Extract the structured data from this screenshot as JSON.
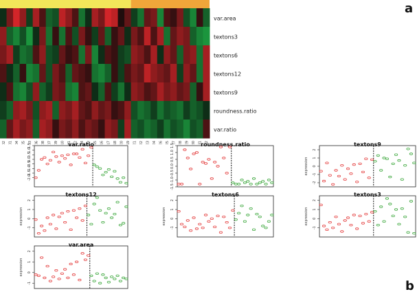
{
  "panel_letters": {
    "a": "a",
    "b": "b"
  },
  "chart_data": [
    {
      "type": "heatmap",
      "group_bar_colors": [
        "#f2e75a",
        "#f0a63a"
      ],
      "group_sizes": [
        20,
        12
      ],
      "rows": [
        "var.area",
        "textons3",
        "textons6",
        "textons12",
        "textons9",
        "roundness.ratio",
        "var.ratio"
      ],
      "columns": [
        "1002",
        "1001",
        "1004",
        "1005",
        "1003",
        "1006",
        "1008",
        "1007",
        "1009",
        "1010",
        "1011",
        "1012",
        "1014",
        "1013",
        "1015",
        "1016",
        "1017",
        "1018",
        "1020",
        "1019",
        "1021",
        "1022",
        "1023",
        "1024",
        "1026",
        "1025",
        "1027",
        "1028",
        "1029",
        "1030",
        "1031",
        "1032"
      ],
      "color_low": "#1fb84a",
      "color_mid": "#0a0a0a",
      "color_high": "#e8282c",
      "values": [
        [
          -0.2,
          0.5,
          0.9,
          0.6,
          -0.3,
          0.7,
          0.3,
          -0.5,
          -0.4,
          0.8,
          0.6,
          0.3,
          -0.6,
          -0.2,
          0.7,
          0.5,
          0.9,
          0.8,
          0.1,
          0.4,
          -0.3,
          -0.6,
          0.4,
          0.5,
          -0.7,
          0.3,
          0.2,
          0.5,
          -0.4,
          -0.7,
          0.2,
          -0.5
        ],
        [
          0.6,
          -0.5,
          -0.7,
          -0.4,
          -0.8,
          -0.2,
          0.5,
          -0.6,
          0.2,
          -0.6,
          0.3,
          -0.4,
          0.5,
          0.2,
          -0.3,
          0.4,
          -0.5,
          0.2,
          0.4,
          -0.2,
          0.5,
          0.3,
          0.8,
          0.3,
          0.7,
          -0.6,
          0.4,
          0.6,
          0.5,
          -0.5,
          -0.7,
          -0.8
        ],
        [
          0.5,
          0.7,
          -0.3,
          -0.6,
          -0.5,
          0.3,
          0.6,
          -0.4,
          -0.3,
          0.4,
          0.2,
          0.3,
          -0.6,
          0.5,
          -0.7,
          -0.2,
          0.3,
          0.2,
          -0.3,
          -0.4,
          0.6,
          0.5,
          0.3,
          0.7,
          -0.2,
          0.6,
          0.4,
          -0.5,
          0.5,
          0.6,
          -0.6,
          0.7
        ],
        [
          0.3,
          -0.2,
          -0.5,
          0.2,
          -0.7,
          -0.6,
          0.4,
          -0.4,
          0.5,
          0.3,
          -0.5,
          0.4,
          0.3,
          0.2,
          -0.6,
          -0.7,
          -0.5,
          0.2,
          -0.3,
          0.3,
          0.5,
          0.4,
          0.8,
          0.6,
          0.5,
          0.4,
          0.7,
          -0.3,
          0.6,
          0.4,
          -0.6,
          0.7
        ],
        [
          -0.2,
          0.3,
          -0.6,
          -0.7,
          -0.4,
          0.6,
          -0.5,
          -0.3,
          0.5,
          0.4,
          -0.6,
          -0.7,
          0.3,
          0.4,
          -0.2,
          -0.5,
          0.3,
          -0.3,
          -0.6,
          -0.2,
          0.6,
          0.5,
          0.3,
          0.4,
          0.7,
          0.5,
          0.6,
          0.4,
          0.5,
          -0.5,
          0.2,
          0.7
        ],
        [
          -0.3,
          -0.5,
          0.6,
          0.7,
          0.5,
          -0.4,
          0.6,
          0.7,
          -0.5,
          0.6,
          0.5,
          0.7,
          0.4,
          0.3,
          0.6,
          0.4,
          0.5,
          0.2,
          0.3,
          0.6,
          -0.4,
          -0.6,
          -0.5,
          -0.3,
          -0.6,
          -0.4,
          -0.5,
          -0.6,
          -0.3,
          -0.5,
          -0.4,
          -0.2
        ],
        [
          -0.5,
          0.4,
          0.7,
          0.5,
          0.6,
          -0.5,
          0.7,
          0.6,
          0.2,
          0.5,
          0.4,
          0.6,
          0.3,
          0.5,
          0.4,
          0.2,
          0.6,
          0.5,
          -0.3,
          0.7,
          -0.5,
          -0.4,
          -0.6,
          -0.5,
          -0.3,
          -0.6,
          -0.4,
          -0.5,
          -0.7,
          -0.4,
          -0.5,
          0.3
        ]
      ]
    },
    {
      "type": "scatter",
      "title": "var.ratio",
      "ylabel": "",
      "ylim": [
        -3.0,
        1.5
      ],
      "yticks": [
        "-2.0",
        "-1.5",
        "-1.0",
        "-0.5",
        "0.0",
        "0.5",
        "1.0",
        "1.5"
      ],
      "threshold_x": 20,
      "series": [
        {
          "color": "#e33b3b",
          "x": [
            1,
            2,
            3,
            4,
            5,
            6,
            7,
            8,
            9,
            10,
            11,
            12,
            13,
            14,
            15,
            16,
            17,
            18,
            19,
            20
          ],
          "y": [
            -2.0,
            -1.2,
            0.0,
            0.2,
            -0.5,
            -0.1,
            0.8,
            0.3,
            -0.3,
            0.4,
            0.1,
            0.5,
            -0.6,
            0.6,
            0.6,
            0.2,
            1.1,
            -0.4,
            0.4,
            1.3
          ]
        },
        {
          "color": "#3aa63a",
          "x": [
            21,
            22,
            23,
            24,
            25,
            26,
            27,
            28,
            29,
            30,
            31,
            32
          ],
          "y": [
            -0.6,
            -0.8,
            -1.0,
            -1.7,
            -1.4,
            -1.1,
            -1.9,
            -1.3,
            -2.1,
            -2.5,
            -2.0,
            -2.6
          ]
        }
      ]
    },
    {
      "type": "scatter",
      "title": "roundness.ratio",
      "ylabel": "",
      "ylim": [
        -1.5,
        1.5
      ],
      "yticks": [
        "-1.5",
        "-1.0",
        "-0.5",
        "0.0",
        "0.5",
        "1.0",
        "1.5"
      ],
      "threshold_x": 18,
      "series": [
        {
          "color": "#e33b3b",
          "x": [
            1,
            2,
            3,
            4,
            5,
            6,
            7,
            8,
            9,
            10,
            11,
            12,
            13,
            14,
            15,
            16,
            17,
            18
          ],
          "y": [
            -1.3,
            -1.3,
            1.2,
            0.6,
            -0.2,
            0.9,
            1.0,
            -1.3,
            0.3,
            0.2,
            0.5,
            -0.9,
            0.3,
            0.0,
            1.4,
            0.6,
            -0.5,
            1.4
          ]
        },
        {
          "color": "#3aa63a",
          "x": [
            19,
            20,
            21,
            22,
            23,
            24,
            25,
            26,
            27,
            28,
            29,
            30,
            31,
            32
          ],
          "y": [
            -1.2,
            -1.3,
            -1.3,
            -1.0,
            -1.2,
            -1.1,
            -1.3,
            -0.9,
            -1.3,
            -1.2,
            -1.1,
            -1.3,
            -1.0,
            -1.2
          ]
        }
      ]
    },
    {
      "type": "scatter",
      "title": "textons9",
      "ylabel": "expression",
      "ylim": [
        -2.5,
        2.5
      ],
      "yticks": [
        "-2",
        "-1",
        "0",
        "1",
        "2"
      ],
      "threshold_x": 18,
      "series": [
        {
          "color": "#e33b3b",
          "x": [
            1,
            2,
            3,
            4,
            5,
            6,
            7,
            8,
            9,
            10,
            11,
            12,
            13,
            14,
            15,
            16,
            17,
            18
          ],
          "y": [
            -0.6,
            -1.8,
            0.4,
            -1.1,
            -2.2,
            -0.5,
            -1.2,
            0.1,
            -1.6,
            -0.3,
            -0.9,
            0.2,
            -1.9,
            0.3,
            -0.7,
            0.9,
            -1.4,
            0.8
          ]
        },
        {
          "color": "#3aa63a",
          "x": [
            19,
            20,
            21,
            22,
            23,
            24,
            25,
            26,
            27,
            28,
            29,
            30,
            31,
            32
          ],
          "y": [
            0.6,
            1.3,
            -0.5,
            1.0,
            0.9,
            -1.3,
            0.3,
            1.4,
            0.7,
            -1.6,
            0.1,
            2.1,
            1.5,
            0.4
          ]
        }
      ]
    },
    {
      "type": "scatter",
      "title": "textons12",
      "ylabel": "expression",
      "ylim": [
        -2,
        2.5
      ],
      "yticks": [
        "-1",
        "0",
        "1",
        "2"
      ],
      "threshold_x": 18,
      "series": [
        {
          "color": "#e33b3b",
          "x": [
            1,
            2,
            3,
            4,
            5,
            6,
            7,
            8,
            9,
            10,
            11,
            12,
            13,
            14,
            15,
            16,
            17,
            18
          ],
          "y": [
            -0.1,
            -1.6,
            -0.8,
            -1.3,
            0.1,
            -0.6,
            0.4,
            -1.1,
            0.2,
            0.6,
            -0.4,
            0.8,
            -1.2,
            0.9,
            0.1,
            1.1,
            -0.2,
            1.4
          ]
        },
        {
          "color": "#3aa63a",
          "x": [
            19,
            20,
            21,
            22,
            23,
            24,
            25,
            26,
            27,
            28,
            29,
            30,
            31,
            32
          ],
          "y": [
            0.4,
            -0.6,
            1.6,
            2.3,
            0.9,
            -0.4,
            0.6,
            1.1,
            0.1,
            0.5,
            1.8,
            -0.7,
            -0.5,
            1.3
          ]
        }
      ]
    },
    {
      "type": "scatter",
      "title": "textons6",
      "ylabel": "expression",
      "ylim": [
        -2,
        2.5
      ],
      "yticks": [
        "-1",
        "0",
        "1",
        "2"
      ],
      "threshold_x": 19,
      "series": [
        {
          "color": "#e33b3b",
          "x": [
            1,
            2,
            3,
            4,
            5,
            6,
            7,
            8,
            9,
            10,
            11,
            12,
            13,
            14,
            15,
            16,
            17,
            18,
            19
          ],
          "y": [
            0.8,
            -0.6,
            -0.9,
            -0.2,
            -1.3,
            0.1,
            -1.1,
            -0.6,
            -1.0,
            0.4,
            -0.3,
            0.0,
            -0.9,
            0.3,
            -1.5,
            0.2,
            -0.4,
            -1.0,
            0.9
          ]
        },
        {
          "color": "#3aa63a",
          "x": [
            20,
            21,
            22,
            23,
            24,
            25,
            26,
            27,
            28,
            29,
            30,
            31,
            32
          ],
          "y": [
            -0.1,
            0.6,
            1.4,
            -0.3,
            0.4,
            1.1,
            -1.2,
            0.5,
            0.2,
            -0.8,
            -1.0,
            -0.3,
            0.4
          ]
        }
      ]
    },
    {
      "type": "scatter",
      "title": "textons3",
      "ylabel": "expression",
      "ylim": [
        -2,
        2.5
      ],
      "yticks": [
        "-1",
        "0",
        "1",
        "2"
      ],
      "threshold_x": 18,
      "series": [
        {
          "color": "#e33b3b",
          "x": [
            1,
            2,
            3,
            4,
            5,
            6,
            7,
            8,
            9,
            10,
            11,
            12,
            13,
            14,
            15,
            16,
            17,
            18
          ],
          "y": [
            1.5,
            -0.8,
            -1.2,
            -0.4,
            -1.0,
            0.2,
            -0.6,
            -1.4,
            -0.2,
            0.1,
            -0.7,
            0.4,
            -1.1,
            0.3,
            -0.5,
            0.5,
            -0.3,
            0.7
          ]
        },
        {
          "color": "#3aa63a",
          "x": [
            19,
            20,
            21,
            22,
            23,
            24,
            25,
            26,
            27,
            28,
            29,
            30,
            31,
            32
          ],
          "y": [
            0.8,
            -0.7,
            1.3,
            -0.3,
            2.2,
            1.6,
            0.3,
            1.0,
            -0.6,
            1.1,
            0.2,
            -1.5,
            1.9,
            -1.6
          ]
        }
      ]
    },
    {
      "type": "scatter",
      "title": "var.area",
      "ylabel": "expression",
      "ylim": [
        -1.5,
        2.5
      ],
      "yticks": [
        "-1",
        "0",
        "1",
        "2"
      ],
      "threshold_x": 19,
      "series": [
        {
          "color": "#e33b3b",
          "x": [
            1,
            2,
            3,
            4,
            5,
            6,
            7,
            8,
            9,
            10,
            11,
            12,
            13,
            14,
            15,
            16,
            17,
            18,
            19
          ],
          "y": [
            -0.2,
            -0.3,
            1.4,
            -0.5,
            0.6,
            -0.8,
            -0.4,
            0.2,
            -0.6,
            -0.1,
            0.3,
            -0.5,
            0.8,
            -0.2,
            1.0,
            -0.7,
            1.8,
            1.2,
            1.6
          ]
        },
        {
          "color": "#3aa63a",
          "x": [
            20,
            21,
            22,
            23,
            24,
            25,
            26,
            27,
            28,
            29,
            30,
            31,
            32
          ],
          "y": [
            -0.3,
            -0.8,
            -0.1,
            -1.0,
            -0.2,
            -0.5,
            -0.9,
            -0.4,
            -0.6,
            -0.3,
            -0.8,
            -0.5,
            -0.6
          ]
        }
      ]
    }
  ]
}
